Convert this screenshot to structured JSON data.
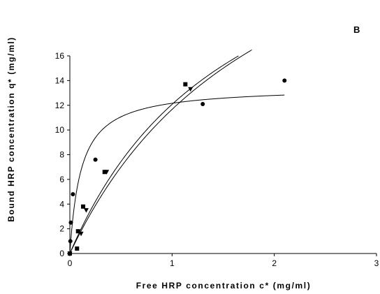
{
  "chart_data": {
    "type": "scatter",
    "panel_label": "B",
    "xlabel": "Free HRP concentration c* (mg/ml)",
    "ylabel": "Bound HRP concentration q* (mg/ml)",
    "xlim": [
      0,
      3
    ],
    "ylim": [
      0,
      16
    ],
    "x_ticks": [
      0,
      1,
      2,
      3
    ],
    "y_ticks": [
      0,
      2,
      4,
      6,
      8,
      10,
      12,
      14,
      16
    ],
    "grid": false,
    "legend": "none",
    "series": [
      {
        "marker": "circle",
        "points": [
          [
            0.0,
            0.0
          ],
          [
            0.005,
            1.0
          ],
          [
            0.01,
            2.5
          ],
          [
            0.03,
            4.8
          ],
          [
            0.25,
            7.6
          ],
          [
            1.3,
            12.1
          ],
          [
            2.1,
            14.0
          ]
        ]
      },
      {
        "marker": "square",
        "points": [
          [
            0.0,
            0.0
          ],
          [
            0.07,
            0.4
          ],
          [
            0.08,
            1.8
          ],
          [
            0.13,
            3.8
          ],
          [
            0.34,
            6.6
          ],
          [
            1.13,
            13.7
          ]
        ]
      },
      {
        "marker": "triangle-down",
        "points": [
          [
            0.0,
            0.0
          ],
          [
            0.11,
            1.6
          ],
          [
            0.16,
            3.5
          ],
          [
            0.36,
            6.6
          ],
          [
            1.18,
            13.3
          ]
        ]
      }
    ],
    "fit_curves": [
      {
        "model": "langmuir",
        "qmax": 13.5,
        "kd": 0.11,
        "x_end": 2.1
      },
      {
        "model": "langmuir",
        "qmax": 32.0,
        "kd": 1.65,
        "x_end": 1.65
      },
      {
        "model": "langmuir",
        "qmax": 35.0,
        "kd": 2.0,
        "x_end": 1.78
      }
    ]
  }
}
